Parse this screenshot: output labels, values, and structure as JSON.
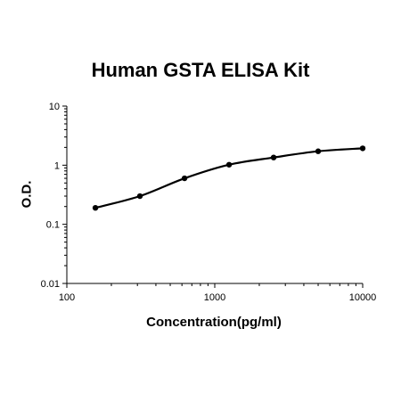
{
  "chart_data": {
    "type": "scatter",
    "title": "Human GSTA ELISA Kit",
    "xlabel": "Concentration(pg/ml)",
    "ylabel": "O.D.",
    "x_scale": "log",
    "y_scale": "log",
    "xlim": [
      100,
      10000
    ],
    "ylim": [
      0.01,
      10
    ],
    "x_ticks": [
      100,
      1000,
      10000
    ],
    "x_tick_labels": [
      "100",
      "1000",
      "10000"
    ],
    "y_ticks": [
      0.01,
      0.1,
      1,
      10
    ],
    "y_tick_labels": [
      "0.01",
      "0.1",
      "1",
      "10"
    ],
    "grid": false,
    "series": [
      {
        "x": [
          156,
          312,
          625,
          1250,
          2500,
          5000,
          10000
        ],
        "y": [
          0.19,
          0.3,
          0.6,
          1.02,
          1.35,
          1.72,
          1.93
        ],
        "marker": "circle",
        "fit_curve": true,
        "color": "#000000"
      }
    ]
  }
}
